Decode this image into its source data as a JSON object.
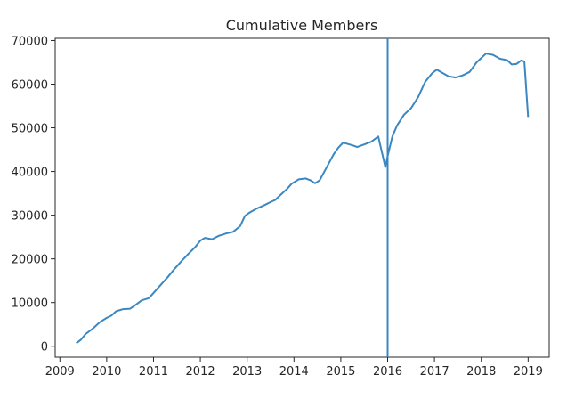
{
  "chart_data": {
    "type": "line",
    "title": "Cumulative Members",
    "xlabel": "",
    "ylabel": "",
    "xlim": [
      2008.9,
      2019.45
    ],
    "ylim": [
      -2500,
      70500
    ],
    "xticks": [
      2009,
      2010,
      2011,
      2012,
      2013,
      2014,
      2015,
      2016,
      2017,
      2018,
      2019
    ],
    "yticks": [
      0,
      10000,
      20000,
      30000,
      40000,
      50000,
      60000,
      70000
    ],
    "grid": false,
    "line_color": "#3a87c2",
    "vline": {
      "x": 2016.0,
      "color": "#3a87c2"
    },
    "series": [
      {
        "x": [
          2009.35,
          2009.45,
          2009.55,
          2009.7,
          2009.85,
          2010.0,
          2010.1,
          2010.2,
          2010.35,
          2010.5,
          2010.6,
          2010.75,
          2010.9,
          2011.0,
          2011.15,
          2011.3,
          2011.45,
          2011.6,
          2011.75,
          2011.9,
          2012.0,
          2012.1,
          2012.25,
          2012.4,
          2012.55,
          2012.7,
          2012.85,
          2012.95,
          2013.05,
          2013.2,
          2013.35,
          2013.5,
          2013.6,
          2013.7,
          2013.85,
          2013.95,
          2014.1,
          2014.25,
          2014.35,
          2014.45,
          2014.55,
          2014.7,
          2014.85,
          2014.95,
          2015.05,
          2015.15,
          2015.25,
          2015.35,
          2015.5,
          2015.65,
          2015.8,
          2015.95,
          2016.0,
          2016.1,
          2016.2,
          2016.35,
          2016.5,
          2016.65,
          2016.8,
          2016.95,
          2017.05,
          2017.15,
          2017.3,
          2017.45,
          2017.6,
          2017.75,
          2017.9,
          2018.0,
          2018.1,
          2018.25,
          2018.4,
          2018.55,
          2018.65,
          2018.75,
          2018.85,
          2018.92,
          2019.0
        ],
        "y": [
          700,
          1500,
          2800,
          4000,
          5500,
          6500,
          7000,
          8000,
          8500,
          8600,
          9300,
          10500,
          11000,
          12200,
          14000,
          15800,
          17700,
          19500,
          21200,
          22800,
          24200,
          24800,
          24500,
          25300,
          25800,
          26200,
          27500,
          29800,
          30600,
          31500,
          32200,
          33000,
          33500,
          34500,
          36000,
          37200,
          38200,
          38400,
          38000,
          37300,
          38000,
          41000,
          44000,
          45500,
          46600,
          46300,
          46000,
          45600,
          46200,
          46800,
          48000,
          41000,
          43500,
          48000,
          50500,
          53000,
          54500,
          57000,
          60500,
          62500,
          63300,
          62700,
          61800,
          61500,
          62000,
          62800,
          65000,
          66000,
          67000,
          66700,
          65800,
          65500,
          64500,
          64600,
          65400,
          65200,
          52500
        ]
      }
    ]
  }
}
